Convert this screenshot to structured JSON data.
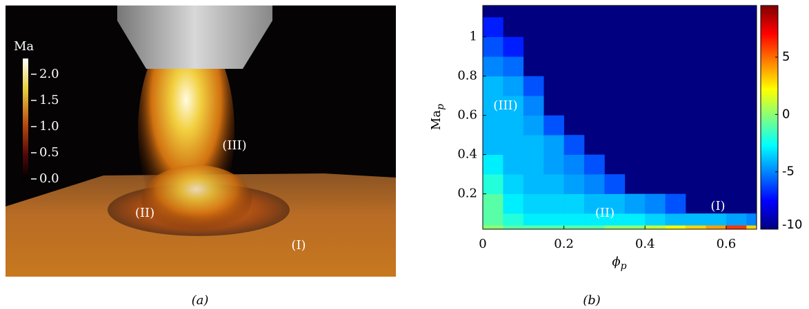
{
  "figure_a": {
    "colorbar": {
      "label": "Ma",
      "clim": [
        0,
        2.3
      ],
      "ticks": [
        {
          "value": 2,
          "label": "2.0"
        },
        {
          "value": 1.5,
          "label": "1.5"
        },
        {
          "value": 1,
          "label": "1.0"
        },
        {
          "value": 0.5,
          "label": "0.5"
        },
        {
          "value": 0,
          "label": "0.0"
        }
      ]
    },
    "annotations": [
      "(III)",
      "(II)",
      "(I)"
    ]
  },
  "chart_data": {
    "type": "heatmap",
    "colormap": "jet",
    "xlabel": "ϕ",
    "xlabel_subscript": "p",
    "ylabel": "Ma",
    "ylabel_subscript": "p",
    "xlim": [
      0,
      0.675
    ],
    "ylim": [
      0.02,
      1.16
    ],
    "xticks": [
      0,
      0.2,
      0.4,
      0.6
    ],
    "yticks": [
      0.2,
      0.4,
      0.6,
      0.8,
      1
    ],
    "x_bins": [
      0,
      0.05,
      0.1,
      0.15,
      0.2,
      0.25,
      0.3,
      0.35,
      0.4,
      0.45,
      0.5,
      0.55,
      0.6,
      0.65,
      0.675
    ],
    "y_bins": [
      0.02,
      0.04,
      0.1,
      0.2,
      0.3,
      0.4,
      0.5,
      0.6,
      0.7,
      0.8,
      0.9,
      1.0,
      1.1
    ],
    "z": [
      [
        0,
        -1,
        -1,
        -1,
        -1,
        -1,
        0,
        0,
        1,
        2,
        3,
        4,
        6,
        3
      ],
      [
        -1,
        -2,
        -3,
        -3,
        -3,
        -3,
        -3,
        -3,
        -3.5,
        -4,
        -4,
        -4,
        -4.5,
        -5
      ],
      [
        -1,
        -3,
        -3.5,
        -3.5,
        -3.5,
        -4,
        -4,
        -4.5,
        -5,
        -6,
        null,
        null,
        null,
        null
      ],
      [
        -2,
        -3.5,
        -4,
        -4,
        -4.5,
        -5,
        -6,
        null,
        null,
        null,
        null,
        null,
        null,
        null
      ],
      [
        -3,
        -4,
        -4,
        -4.5,
        -5,
        -6,
        null,
        null,
        null,
        null,
        null,
        null,
        null,
        null
      ],
      [
        -4,
        -4,
        -4,
        -4.5,
        -6,
        null,
        null,
        null,
        null,
        null,
        null,
        null,
        null,
        null
      ],
      [
        -4,
        -4,
        -4.5,
        -6,
        null,
        null,
        null,
        null,
        null,
        null,
        null,
        null,
        null,
        null
      ],
      [
        -4,
        -4,
        -5,
        null,
        null,
        null,
        null,
        null,
        null,
        null,
        null,
        null,
        null,
        null
      ],
      [
        -4,
        -4.5,
        -6,
        null,
        null,
        null,
        null,
        null,
        null,
        null,
        null,
        null,
        null,
        null
      ],
      [
        -5,
        -5.5,
        null,
        null,
        null,
        null,
        null,
        null,
        null,
        null,
        null,
        null,
        null,
        null
      ],
      [
        -6,
        -7,
        null,
        null,
        null,
        null,
        null,
        null,
        null,
        null,
        null,
        null,
        null,
        null
      ],
      [
        -7,
        null,
        null,
        null,
        null,
        null,
        null,
        null,
        null,
        null,
        null,
        null,
        null,
        null
      ]
    ],
    "clim": [
      -10,
      9.5
    ],
    "cticks": [
      -10,
      -5,
      0,
      5
    ],
    "annotations": [
      "(III)",
      "(II)",
      "(I)"
    ]
  },
  "captions": [
    "(a)",
    "(b)"
  ]
}
